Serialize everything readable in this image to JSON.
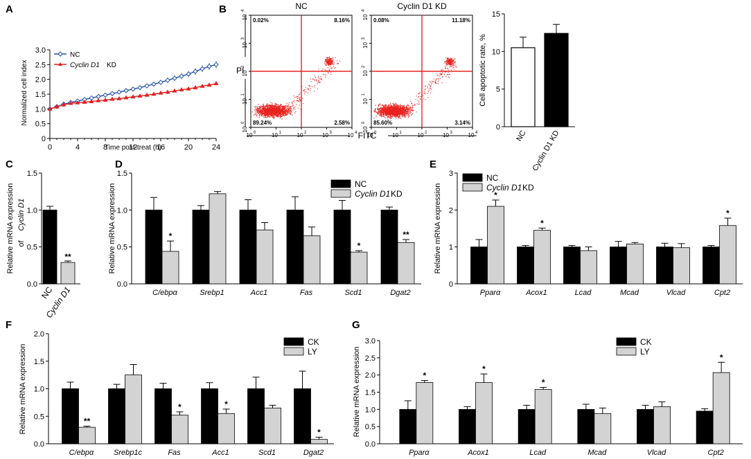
{
  "figure": {
    "panel_letters": [
      "A",
      "B",
      "C",
      "D",
      "E",
      "F",
      "G"
    ]
  },
  "colors": {
    "nc_line": "#1f4fa8",
    "kd_line": "#e02020",
    "flow_dots": "#e8231f",
    "flow_gate": "#e8231f",
    "bar_black": "#000000",
    "bar_gray": "#d3d3d3",
    "bar_white": "#ffffff"
  },
  "chart_data": [
    {
      "panel": "A",
      "type": "line",
      "ylabel": "Normalized cell index",
      "xlabel": "Time post-treat (h)",
      "xlim": [
        0,
        24
      ],
      "ylim": [
        0,
        3.0
      ],
      "xticks": [
        0,
        4,
        8,
        12,
        16,
        20,
        24
      ],
      "yticks": [
        "0",
        "0.5",
        "1.0",
        "1.5",
        "2.0",
        "2.5",
        "3.0"
      ],
      "legend": [
        {
          "name": "NC",
          "italic": false
        },
        {
          "name": "Cyclin D1",
          "italic": true,
          "suffix": " KD"
        }
      ],
      "x": [
        0,
        1,
        2,
        3,
        4,
        5,
        6,
        7,
        8,
        9,
        10,
        11,
        12,
        13,
        14,
        15,
        16,
        17,
        18,
        19,
        20,
        21,
        22,
        23,
        24
      ],
      "series": [
        {
          "name": "NC",
          "values": [
            1.0,
            1.08,
            1.16,
            1.22,
            1.27,
            1.32,
            1.37,
            1.42,
            1.47,
            1.52,
            1.57,
            1.62,
            1.67,
            1.72,
            1.78,
            1.84,
            1.9,
            1.97,
            2.04,
            2.11,
            2.18,
            2.27,
            2.36,
            2.44,
            2.5
          ],
          "err": 0.1
        },
        {
          "name": "Cyclin D1 KD",
          "values": [
            1.0,
            1.07,
            1.14,
            1.19,
            1.21,
            1.23,
            1.25,
            1.28,
            1.3,
            1.33,
            1.35,
            1.38,
            1.41,
            1.44,
            1.47,
            1.5,
            1.54,
            1.57,
            1.61,
            1.65,
            1.68,
            1.72,
            1.77,
            1.81,
            1.86
          ],
          "err": 0.02
        }
      ]
    },
    {
      "panel": "B",
      "type": "scatter",
      "subtype": "flow-cytometry",
      "plots": [
        {
          "title": "NC",
          "quadrants": {
            "ul": "0.02%",
            "ur": "8.16%",
            "ll": "89.24%",
            "lr": "2.58%"
          }
        },
        {
          "title": "Cyclin D1 KD",
          "quadrants": {
            "ul": "0.08%",
            "ur": "11.18%",
            "ll": "85.60%",
            "lr": "3.14%"
          }
        }
      ],
      "ylabel": "PI",
      "xlabel": "FITC",
      "tick_base": "10",
      "tick_exps": [
        "0",
        "1",
        "2",
        "3",
        "4"
      ]
    },
    {
      "panel": "B-bar",
      "type": "bar",
      "categories": [
        "NC",
        "Cyclin D1 KD"
      ],
      "values": [
        10.5,
        12.4
      ],
      "errors": [
        1.4,
        1.2
      ],
      "ylabel": "Cell apoptotic rate, %",
      "ylim": [
        0,
        15
      ],
      "yticks": [
        "0",
        "5",
        "10",
        "15"
      ]
    },
    {
      "panel": "C",
      "type": "bar",
      "categories": [
        "NC",
        "Cyclin D1"
      ],
      "categories_italic": [
        false,
        true
      ],
      "values": [
        1.0,
        0.29
      ],
      "errors": [
        0.05,
        0.02
      ],
      "sig": [
        "",
        "**"
      ],
      "ylabel_line1": "Relative mRNA expression",
      "ylabel_line2_prefix": "of ",
      "ylabel_line2_italic": "Cyclin D1",
      "ylim": [
        0,
        1.5
      ],
      "yticks": [
        "0.0",
        "0.5",
        "1.0",
        "1.5"
      ]
    },
    {
      "panel": "D",
      "type": "bar",
      "ylabel": "Relative mRNA expression",
      "ylim": [
        0,
        1.5
      ],
      "yticks": [
        "0.0",
        "0.5",
        "1.0",
        "1.5"
      ],
      "legend": [
        {
          "name": "NC",
          "italic": false
        },
        {
          "name": "Cyclin D1",
          "italic": true,
          "suffix": " KD"
        }
      ],
      "categories": [
        "C/ebpα",
        "Srebp1",
        "Acc1",
        "Fas",
        "Scd1",
        "Dgat2"
      ],
      "series": [
        {
          "name": "NC",
          "values": [
            1.0,
            1.0,
            1.0,
            1.0,
            1.0,
            1.0
          ],
          "errors": [
            0.17,
            0.06,
            0.14,
            0.18,
            0.13,
            0.04
          ]
        },
        {
          "name": "Cyclin D1 KD",
          "values": [
            0.44,
            1.22,
            0.73,
            0.65,
            0.43,
            0.56
          ],
          "errors": [
            0.14,
            0.03,
            0.1,
            0.12,
            0.02,
            0.04
          ]
        }
      ],
      "sig": [
        "*",
        "",
        "",
        "",
        "*",
        "**"
      ]
    },
    {
      "panel": "E",
      "type": "bar",
      "ylabel": "Relative mRNA expression",
      "ylim": [
        0,
        3
      ],
      "yticks": [
        "0",
        "1",
        "2",
        "3"
      ],
      "legend": [
        {
          "name": "NC",
          "italic": false
        },
        {
          "name": "Cyclin D1",
          "italic": true,
          "suffix": " KD"
        }
      ],
      "categories": [
        "Pparα",
        "Acox1",
        "Lcad",
        "Mcad",
        "Vlcad",
        "Cpt2"
      ],
      "series": [
        {
          "name": "NC",
          "values": [
            1.0,
            1.0,
            1.0,
            1.0,
            1.0,
            1.0
          ],
          "errors": [
            0.2,
            0.04,
            0.04,
            0.15,
            0.1,
            0.04
          ]
        },
        {
          "name": "Cyclin D1 KD",
          "values": [
            2.1,
            1.45,
            0.9,
            1.08,
            0.98,
            1.58
          ],
          "errors": [
            0.17,
            0.06,
            0.1,
            0.04,
            0.11,
            0.2
          ]
        }
      ],
      "sig": [
        "*",
        "*",
        "",
        "",
        "",
        "*"
      ]
    },
    {
      "panel": "F",
      "type": "bar",
      "ylabel": "Relative mRNA expression",
      "ylim": [
        0,
        2.0
      ],
      "yticks": [
        "0.0",
        "0.5",
        "1.0",
        "1.5",
        "2.0"
      ],
      "legend": [
        {
          "name": "CK",
          "italic": false
        },
        {
          "name": "LY",
          "italic": false
        }
      ],
      "categories": [
        "C/ebpα",
        "Srebp1c",
        "Fas",
        "Acc1",
        "Scd1",
        "Dgat2"
      ],
      "series": [
        {
          "name": "CK",
          "values": [
            1.0,
            1.0,
            1.0,
            1.0,
            1.0,
            1.0
          ],
          "errors": [
            0.12,
            0.08,
            0.1,
            0.11,
            0.21,
            0.32
          ]
        },
        {
          "name": "LY",
          "values": [
            0.3,
            1.25,
            0.52,
            0.55,
            0.65,
            0.08
          ],
          "errors": [
            0.02,
            0.19,
            0.06,
            0.08,
            0.05,
            0.04
          ]
        }
      ],
      "sig": [
        "**",
        "",
        "*",
        "*",
        "",
        "*"
      ]
    },
    {
      "panel": "G",
      "type": "bar",
      "ylabel": "Relative mRNA expression",
      "ylim": [
        0,
        3.0
      ],
      "yticks": [
        "0.0",
        "0.5",
        "1.0",
        "1.5",
        "2.0",
        "2.5",
        "3.0"
      ],
      "legend": [
        {
          "name": "CK",
          "italic": false
        },
        {
          "name": "LY",
          "italic": false
        }
      ],
      "categories": [
        "Pparα",
        "Acox1",
        "Lcad",
        "Mcad",
        "Vlcad",
        "Cpt2"
      ],
      "series": [
        {
          "name": "CK",
          "values": [
            1.0,
            1.0,
            1.0,
            1.0,
            1.0,
            0.95
          ],
          "errors": [
            0.25,
            0.08,
            0.12,
            0.15,
            0.12,
            0.07
          ]
        },
        {
          "name": "LY",
          "values": [
            1.78,
            1.78,
            1.58,
            0.88,
            1.08,
            2.07
          ],
          "errors": [
            0.06,
            0.25,
            0.06,
            0.16,
            0.14,
            0.3
          ]
        }
      ],
      "sig": [
        "*",
        "*",
        "*",
        "",
        "",
        "*"
      ]
    }
  ]
}
